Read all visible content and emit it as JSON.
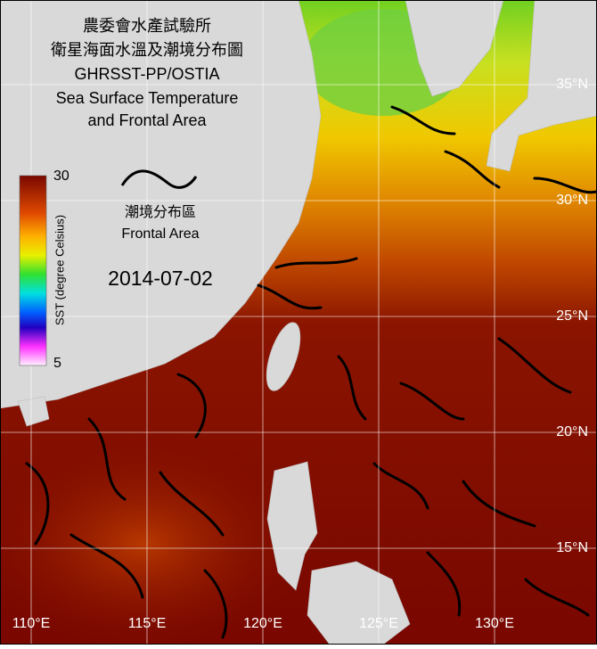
{
  "title": [
    "農委會水產試驗所",
    "衛星海面水溫及潮境分布圖",
    "GHRSST-PP/OSTIA",
    "Sea Surface Temperature",
    "and Frontal Area"
  ],
  "legend": {
    "front_label_zh": "潮境分布區",
    "front_label_en": "Frontal Area"
  },
  "date": "2014-07-02",
  "colorbar": {
    "label": "SST (degree Celsius)",
    "max": 30,
    "min": 5
  },
  "lat_labels": [
    "35°N",
    "30°N",
    "25°N",
    "20°N",
    "15°N"
  ],
  "lon_labels": [
    "110°E",
    "115°E",
    "120°E",
    "125°E",
    "130°E"
  ]
}
